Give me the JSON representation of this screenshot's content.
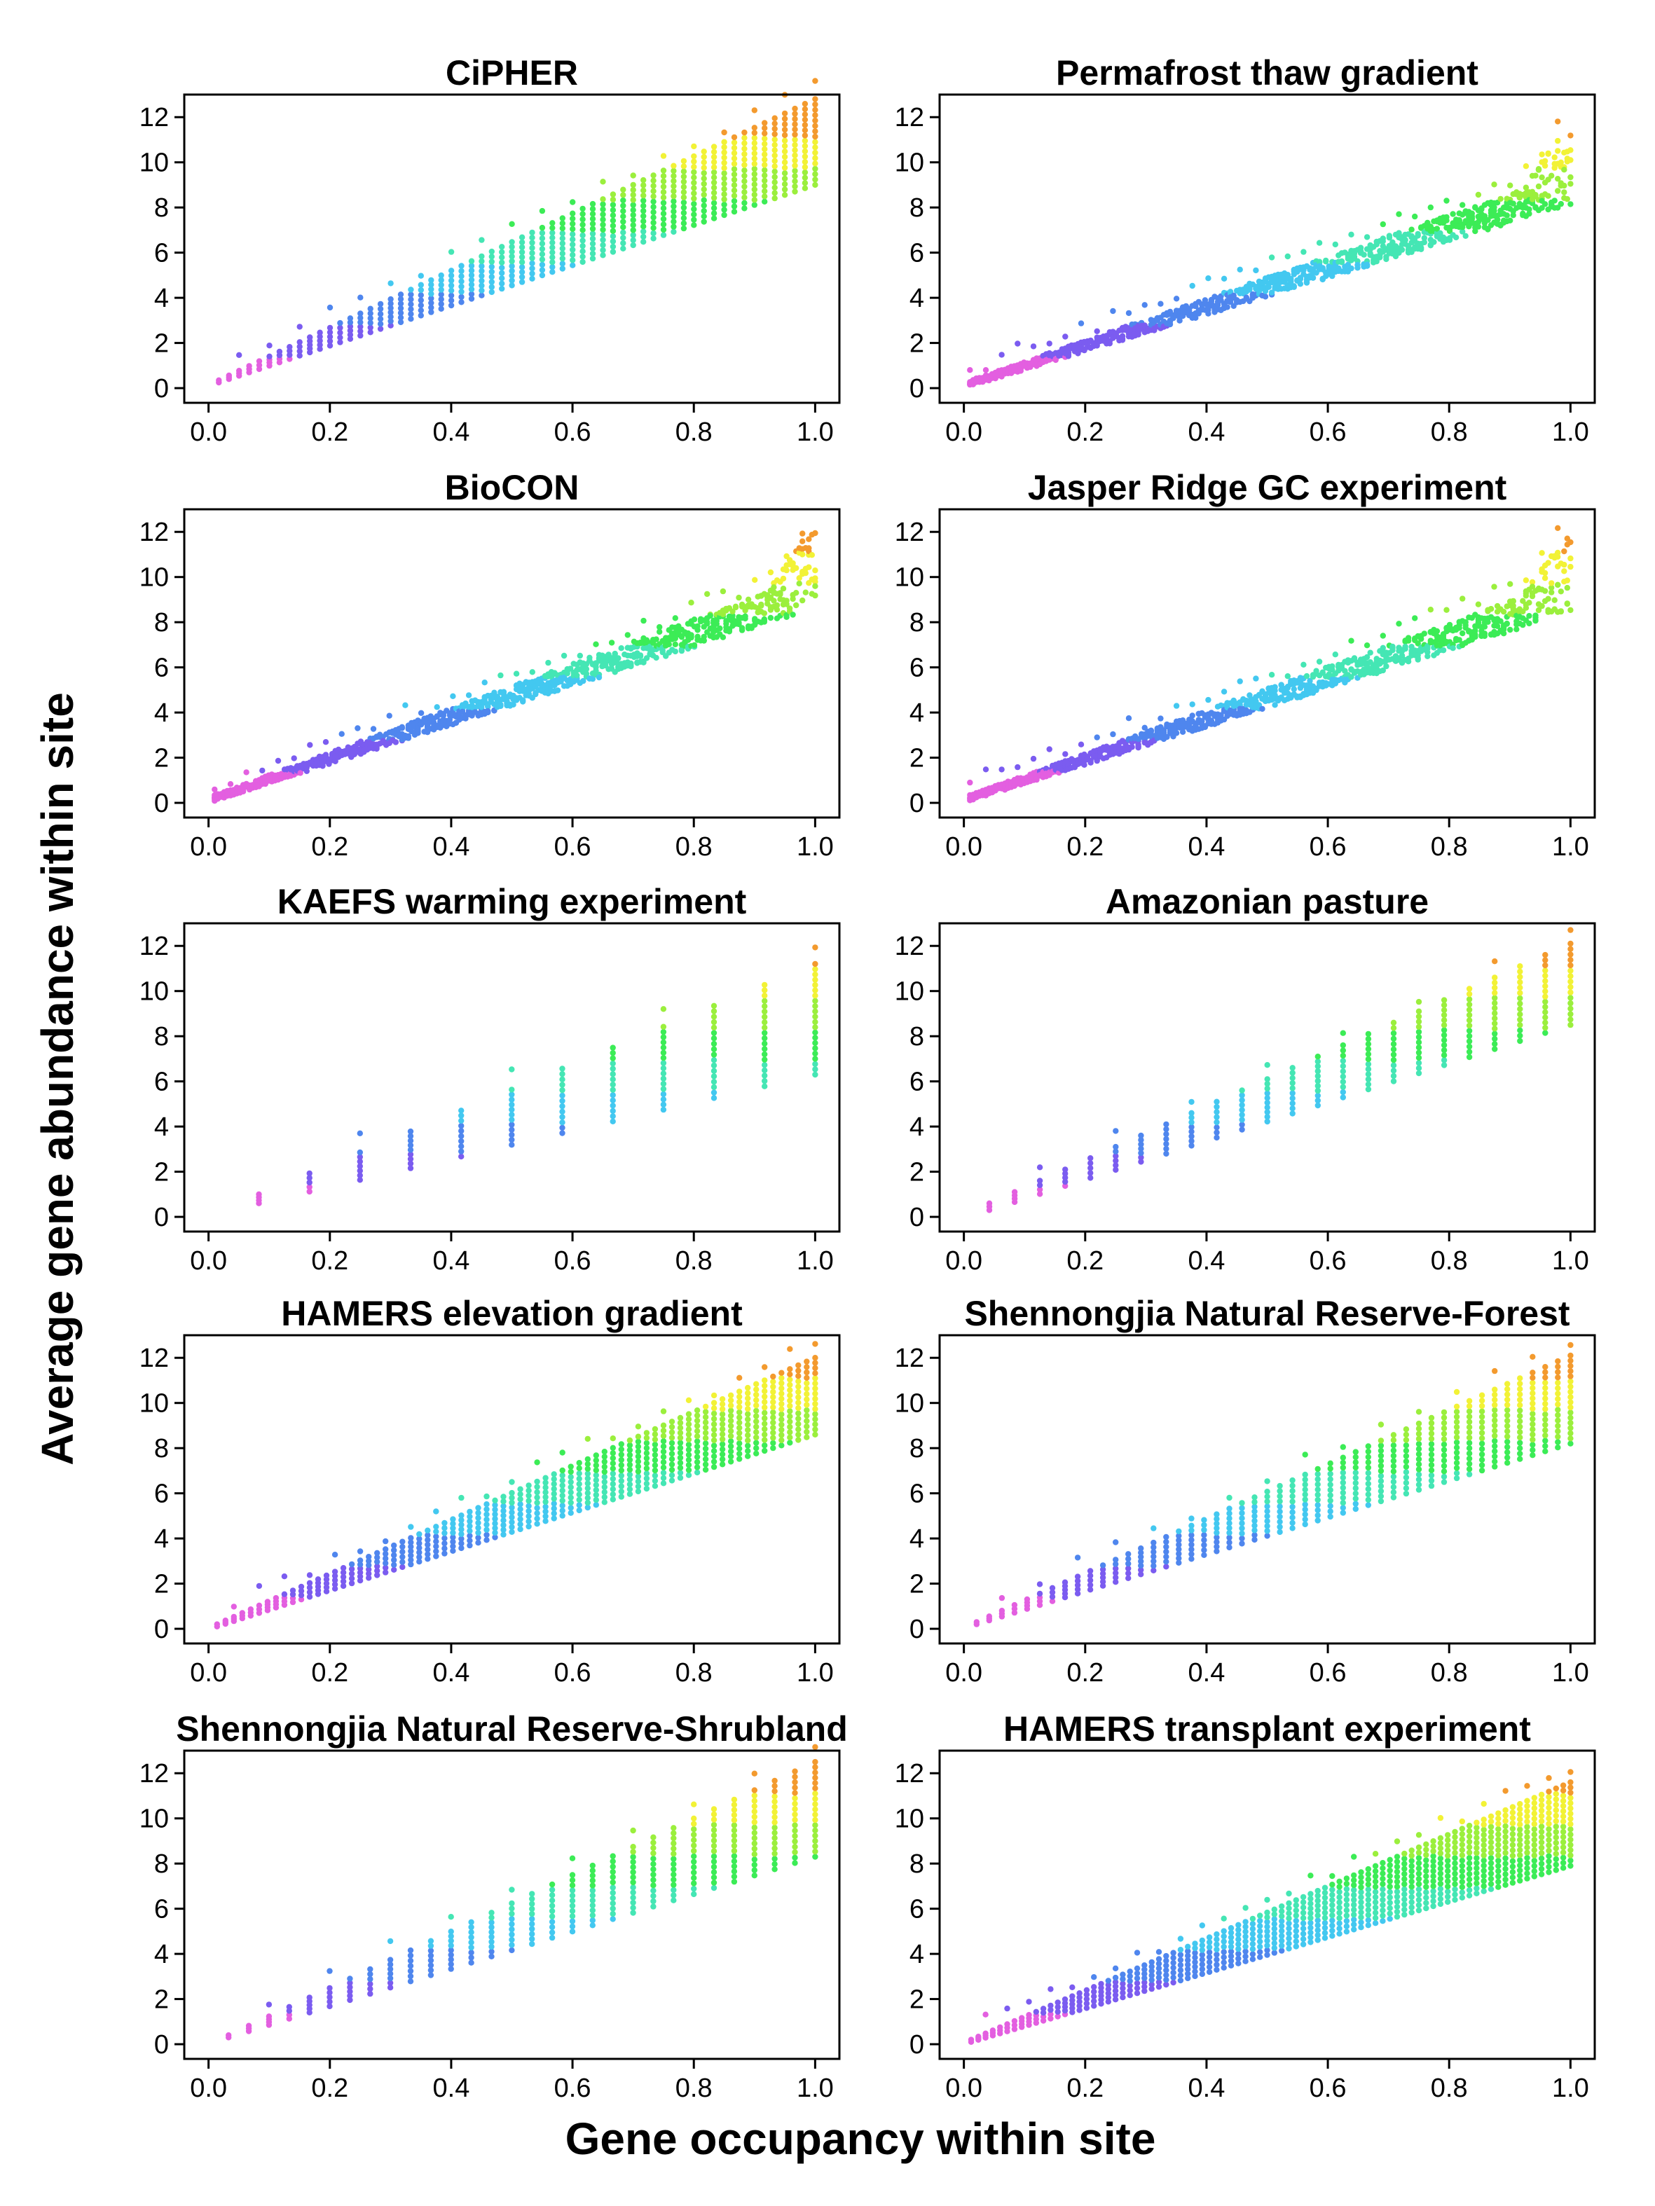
{
  "figure": {
    "xlabel": "Gene occupancy within site",
    "ylabel": "Average gene abundance within site",
    "color_scale": [
      "#e35fe0",
      "#7b5cf0",
      "#4f86ee",
      "#43c8f0",
      "#45e6b4",
      "#3cec56",
      "#9bef3d",
      "#f2f236",
      "#f39a2e"
    ]
  },
  "chart_data": [
    {
      "type": "scatter",
      "title": "CiPHER",
      "xlim": [
        0,
        1
      ],
      "ylim": [
        0,
        12.8
      ],
      "x_ticks": [
        "0.0",
        "0.2",
        "0.4",
        "0.6",
        "0.8",
        "1.0"
      ],
      "y_ticks": [
        "0",
        "2",
        "4",
        "6",
        "8",
        "10",
        "12"
      ],
      "pattern": "columns",
      "n_columns": 60,
      "x_start": 0.017,
      "low_start": 0.25,
      "high_start": 0.35,
      "low_end": 9.0,
      "high_end": 12.8
    },
    {
      "type": "scatter",
      "title": "Permafrost thaw gradient",
      "xlim": [
        0,
        1
      ],
      "ylim": [
        0,
        12.7
      ],
      "x_ticks": [
        "0.0",
        "0.2",
        "0.4",
        "0.6",
        "0.8",
        "1.0"
      ],
      "y_ticks": [
        "0",
        "2",
        "4",
        "6",
        "8",
        "10",
        "12"
      ],
      "pattern": "dense",
      "low_end": 8.3,
      "high_end": 12.7
    },
    {
      "type": "scatter",
      "title": "BioCON",
      "xlim": [
        0,
        1
      ],
      "ylim": [
        0,
        12
      ],
      "x_ticks": [
        "0.0",
        "0.2",
        "0.4",
        "0.6",
        "0.8",
        "1.0"
      ],
      "y_ticks": [
        "0",
        "2",
        "4",
        "6",
        "8",
        "10",
        "12"
      ],
      "pattern": "dense",
      "low_end": 8.8,
      "high_end": 12.0
    },
    {
      "type": "scatter",
      "title": "Jasper Ridge GC experiment",
      "xlim": [
        0,
        1
      ],
      "ylim": [
        0,
        12.6
      ],
      "x_ticks": [
        "0.0",
        "0.2",
        "0.4",
        "0.6",
        "0.8",
        "1.0"
      ],
      "y_ticks": [
        "0",
        "2",
        "4",
        "6",
        "8",
        "10",
        "12"
      ],
      "pattern": "dense",
      "low_end": 8.6,
      "high_end": 12.6
    },
    {
      "type": "scatter",
      "title": "KAEFS warming experiment",
      "xlim": [
        0,
        1
      ],
      "ylim": [
        0,
        12
      ],
      "x_ticks": [
        "0.0",
        "0.2",
        "0.4",
        "0.6",
        "0.8",
        "1.0"
      ],
      "y_ticks": [
        "0",
        "2",
        "4",
        "6",
        "8",
        "10",
        "12"
      ],
      "pattern": "columns",
      "n_columns": 12,
      "x_start": 0.083,
      "low_start": 0.6,
      "high_start": 1.0,
      "low_end": 6.3,
      "high_end": 11.2
    },
    {
      "type": "scatter",
      "title": "Amazonian pasture",
      "xlim": [
        0,
        1
      ],
      "ylim": [
        0,
        12
      ],
      "x_ticks": [
        "0.0",
        "0.2",
        "0.4",
        "0.6",
        "0.8",
        "1.0"
      ],
      "y_ticks": [
        "0",
        "2",
        "4",
        "6",
        "8",
        "10",
        "12"
      ],
      "pattern": "columns",
      "n_columns": 24,
      "x_start": 0.042,
      "low_start": 0.3,
      "high_start": 0.6,
      "low_end": 8.5,
      "high_end": 12.1
    },
    {
      "type": "scatter",
      "title": "HAMERS elevation gradient",
      "xlim": [
        0,
        1
      ],
      "ylim": [
        0,
        12
      ],
      "x_ticks": [
        "0.0",
        "0.2",
        "0.4",
        "0.6",
        "0.8",
        "1.0"
      ],
      "y_ticks": [
        "0",
        "2",
        "4",
        "6",
        "8",
        "10",
        "12"
      ],
      "pattern": "columns",
      "n_columns": 72,
      "x_start": 0.014,
      "low_start": 0.1,
      "high_start": 0.2,
      "low_end": 8.6,
      "high_end": 12.0
    },
    {
      "type": "scatter",
      "title": "Shennongjia Natural Reserve-Forest",
      "xlim": [
        0,
        1
      ],
      "ylim": [
        0,
        12
      ],
      "x_ticks": [
        "0.0",
        "0.2",
        "0.4",
        "0.6",
        "0.8",
        "1.0"
      ],
      "y_ticks": [
        "0",
        "2",
        "4",
        "6",
        "8",
        "10",
        "12"
      ],
      "pattern": "columns",
      "n_columns": 48,
      "x_start": 0.021,
      "low_start": 0.2,
      "high_start": 0.3,
      "low_end": 8.2,
      "high_end": 12.1
    },
    {
      "type": "scatter",
      "title": "Shennongjia Natural Reserve-Shrubland",
      "xlim": [
        0,
        1
      ],
      "ylim": [
        0,
        12.5
      ],
      "x_ticks": [
        "0.0",
        "0.2",
        "0.4",
        "0.6",
        "0.8",
        "1.0"
      ],
      "y_ticks": [
        "0",
        "2",
        "4",
        "6",
        "8",
        "10",
        "12"
      ],
      "pattern": "columns",
      "n_columns": 30,
      "x_start": 0.033,
      "low_start": 0.3,
      "high_start": 0.4,
      "low_end": 8.3,
      "high_end": 12.5
    },
    {
      "type": "scatter",
      "title": "HAMERS transplant experiment",
      "xlim": [
        0,
        1
      ],
      "ylim": [
        0,
        11.6
      ],
      "x_ticks": [
        "0.0",
        "0.2",
        "0.4",
        "0.6",
        "0.8",
        "1.0"
      ],
      "y_ticks": [
        "0",
        "2",
        "4",
        "6",
        "8",
        "10",
        "12"
      ],
      "pattern": "columns",
      "n_columns": 84,
      "x_start": 0.012,
      "low_start": 0.1,
      "high_start": 0.2,
      "low_end": 7.9,
      "high_end": 11.6
    }
  ]
}
